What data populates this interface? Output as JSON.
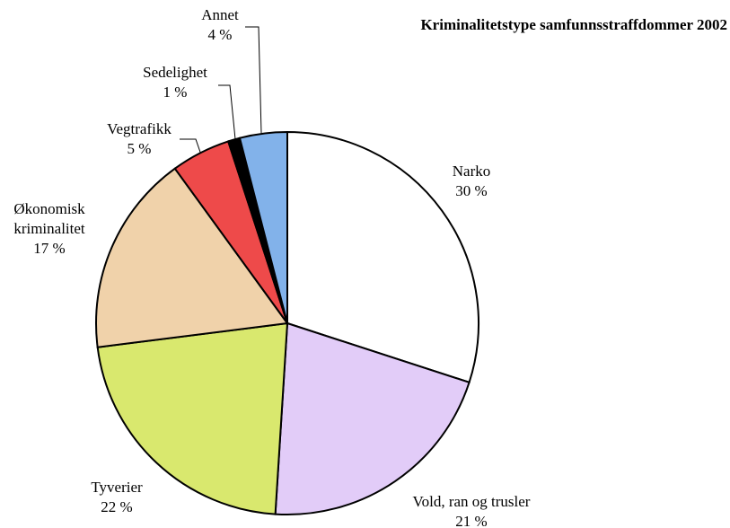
{
  "chart_data": {
    "type": "pie",
    "title": "Kriminalitetstype samfunnsstraffdommer 2002",
    "categories": [
      "Narko",
      "Vold, ran og trusler",
      "Tyverier",
      "Økonomisk kriminalitet",
      "Vegtrafikk",
      "Sedelighet",
      "Annet"
    ],
    "values": [
      30,
      21,
      22,
      17,
      5,
      1,
      4
    ],
    "value_labels": [
      "30 %",
      "21 %",
      "22 %",
      "17 %",
      "5 %",
      "1 %",
      "4 %"
    ],
    "colors": [
      "#ffffff",
      "#e2ccf8",
      "#d9e86e",
      "#f0d2aa",
      "#ee4a4a",
      "#000000",
      "#82b2ea"
    ]
  }
}
